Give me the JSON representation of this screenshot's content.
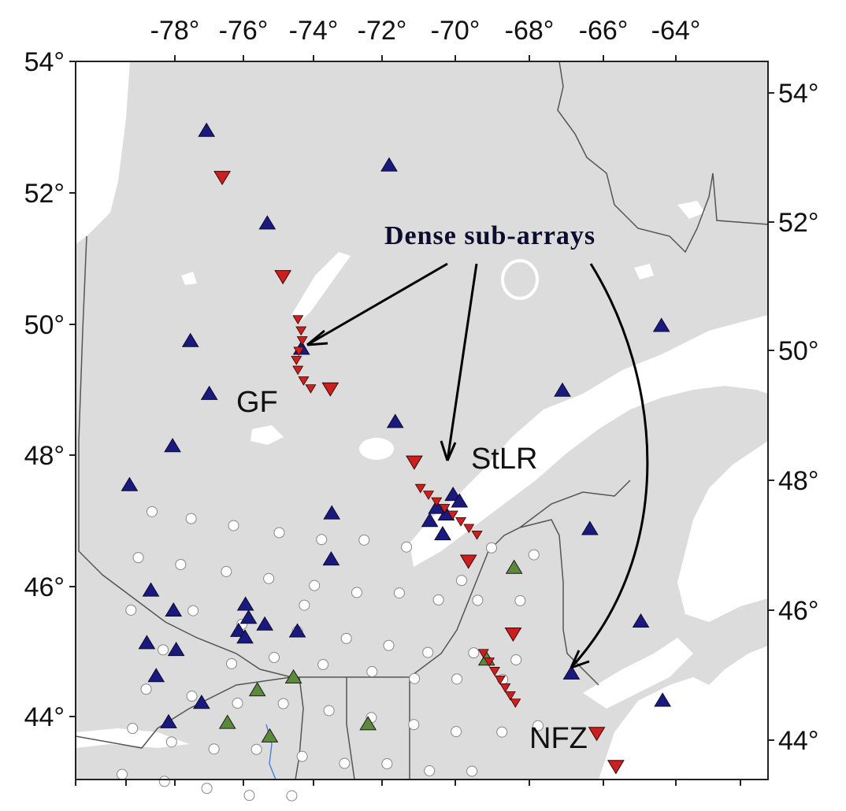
{
  "figure": {
    "callout_title": "Dense sub-arrays",
    "regions": [
      {
        "id": "gf",
        "label": "GF"
      },
      {
        "id": "stlr",
        "label": "StLR"
      },
      {
        "id": "nfz",
        "label": "NFZ"
      }
    ]
  },
  "axes": {
    "top_ticks": [
      {
        "value": -78,
        "label": "-78°"
      },
      {
        "value": -76,
        "label": "-76°"
      },
      {
        "value": -74,
        "label": "-74°"
      },
      {
        "value": -72,
        "label": "-72°"
      },
      {
        "value": -70,
        "label": "-70°"
      },
      {
        "value": -68,
        "label": "-68°"
      },
      {
        "value": -66,
        "label": "-66°"
      },
      {
        "value": -64,
        "label": "-64°"
      }
    ],
    "left_ticks": [
      {
        "value": 54,
        "label": "54°"
      },
      {
        "value": 52,
        "label": "52°"
      },
      {
        "value": 50,
        "label": "50°"
      },
      {
        "value": 48,
        "label": "48°"
      },
      {
        "value": 46,
        "label": "46°"
      },
      {
        "value": 44,
        "label": "44°"
      }
    ],
    "right_ticks": [
      {
        "value": 54,
        "label": "54°"
      },
      {
        "value": 52,
        "label": "52°"
      },
      {
        "value": 50,
        "label": "50°"
      },
      {
        "value": 48,
        "label": "48°"
      },
      {
        "value": 46,
        "label": "46°"
      },
      {
        "value": 44,
        "label": "44°"
      }
    ]
  },
  "colors": {
    "land": "#dcdcdc",
    "water": "#ffffff",
    "border_line": "#555555",
    "permanent_station": "#1a1a7e",
    "temporary_station": "#5d8a3a",
    "dense_array_station": "#cc1f1f",
    "grid_station": "#ffffff",
    "arrow": "#000000"
  },
  "stations": {
    "blue": [
      [
        -77.8,
        52.9
      ],
      [
        -75.9,
        51.5
      ],
      [
        -72.2,
        52.4
      ],
      [
        -78.2,
        49.7
      ],
      [
        -77.6,
        48.9
      ],
      [
        -74.8,
        49.6
      ],
      [
        -78.7,
        48.1
      ],
      [
        -80.0,
        47.5
      ],
      [
        -73.8,
        47.1
      ],
      [
        -73.8,
        46.4
      ],
      [
        -71.9,
        48.5
      ],
      [
        -66.8,
        49.0
      ],
      [
        -63.8,
        50.0
      ],
      [
        -70.3,
        47.1
      ],
      [
        -70.6,
        47.2
      ],
      [
        -70.1,
        47.4
      ],
      [
        -69.9,
        47.3
      ],
      [
        -70.4,
        46.8
      ],
      [
        -70.8,
        47.0
      ],
      [
        -65.9,
        46.9
      ],
      [
        -64.3,
        45.5
      ],
      [
        -66.4,
        44.7
      ],
      [
        -63.6,
        44.3
      ],
      [
        -79.3,
        45.9
      ],
      [
        -78.6,
        45.6
      ],
      [
        -79.4,
        45.1
      ],
      [
        -78.5,
        45.0
      ],
      [
        -79.1,
        44.6
      ],
      [
        -78.7,
        43.9
      ],
      [
        -77.7,
        44.2
      ],
      [
        -76.4,
        45.7
      ],
      [
        -76.3,
        45.5
      ],
      [
        -76.6,
        45.3
      ],
      [
        -76.4,
        45.2
      ],
      [
        -75.8,
        45.4
      ],
      [
        -74.8,
        45.3
      ]
    ],
    "green": [
      [
        -68.2,
        46.3
      ],
      [
        -69.0,
        44.9
      ],
      [
        -74.9,
        44.6
      ],
      [
        -76.0,
        44.4
      ],
      [
        -76.9,
        43.9
      ],
      [
        -75.6,
        43.7
      ],
      [
        -72.6,
        43.9
      ]
    ],
    "red_large": [
      [
        -77.3,
        52.2
      ],
      [
        -75.4,
        50.7
      ],
      [
        -73.9,
        49.0
      ],
      [
        -71.3,
        47.9
      ],
      [
        -69.6,
        46.4
      ],
      [
        -68.2,
        45.3
      ],
      [
        -65.6,
        43.8
      ],
      [
        -65.0,
        43.3
      ]
    ],
    "red_small": [
      [
        -74.92,
        50.05
      ],
      [
        -74.82,
        49.88
      ],
      [
        -74.78,
        49.73
      ],
      [
        -74.88,
        49.57
      ],
      [
        -74.95,
        49.43
      ],
      [
        -74.9,
        49.28
      ],
      [
        -74.72,
        49.12
      ],
      [
        -74.5,
        49.0
      ],
      [
        -71.1,
        47.5
      ],
      [
        -70.85,
        47.4
      ],
      [
        -70.6,
        47.3
      ],
      [
        -70.35,
        47.2
      ],
      [
        -70.1,
        47.1
      ],
      [
        -69.85,
        47.0
      ],
      [
        -69.6,
        46.9
      ],
      [
        -69.35,
        46.8
      ],
      [
        -69.1,
        45.0
      ],
      [
        -68.92,
        44.87
      ],
      [
        -68.75,
        44.73
      ],
      [
        -68.58,
        44.6
      ],
      [
        -68.42,
        44.48
      ],
      [
        -68.26,
        44.36
      ],
      [
        -68.1,
        44.25
      ]
    ],
    "white": [
      [
        -79.3,
        47.1
      ],
      [
        -78.1,
        47.0
      ],
      [
        -76.8,
        46.9
      ],
      [
        -75.4,
        46.8
      ],
      [
        -74.1,
        46.7
      ],
      [
        -72.8,
        46.7
      ],
      [
        -71.5,
        46.6
      ],
      [
        -68.9,
        46.6
      ],
      [
        -67.6,
        46.5
      ],
      [
        -79.7,
        46.4
      ],
      [
        -78.4,
        46.3
      ],
      [
        -77.0,
        46.2
      ],
      [
        -75.7,
        46.1
      ],
      [
        -74.3,
        46.0
      ],
      [
        -73.0,
        45.9
      ],
      [
        -71.7,
        45.9
      ],
      [
        -70.5,
        45.8
      ],
      [
        -69.3,
        45.8
      ],
      [
        -68.0,
        45.8
      ],
      [
        -79.9,
        45.6
      ],
      [
        -78.0,
        45.6
      ],
      [
        -76.5,
        45.4
      ],
      [
        -74.8,
        45.3
      ],
      [
        -73.3,
        45.2
      ],
      [
        -72.0,
        45.1
      ],
      [
        -70.8,
        45.0
      ],
      [
        -69.4,
        45.0
      ],
      [
        -68.1,
        44.9
      ],
      [
        -75.5,
        44.9
      ],
      [
        -74.0,
        44.8
      ],
      [
        -72.5,
        44.7
      ],
      [
        -71.2,
        44.6
      ],
      [
        -69.9,
        44.6
      ],
      [
        -68.5,
        44.6
      ],
      [
        -79.4,
        44.4
      ],
      [
        -78.0,
        44.3
      ],
      [
        -76.6,
        44.2
      ],
      [
        -75.2,
        44.2
      ],
      [
        -73.8,
        44.1
      ],
      [
        -72.5,
        44.0
      ],
      [
        -71.2,
        43.9
      ],
      [
        -69.9,
        43.8
      ],
      [
        -68.5,
        43.8
      ],
      [
        -67.4,
        43.9
      ],
      [
        -79.8,
        43.8
      ],
      [
        -78.6,
        43.6
      ],
      [
        -77.3,
        43.5
      ],
      [
        -76.0,
        43.5
      ],
      [
        -74.6,
        43.4
      ],
      [
        -73.3,
        43.3
      ],
      [
        -72.0,
        43.3
      ],
      [
        -70.7,
        43.2
      ],
      [
        -69.4,
        43.2
      ],
      [
        -80.1,
        43.1
      ],
      [
        -78.8,
        43.0
      ],
      [
        -77.5,
        42.9
      ],
      [
        -76.2,
        42.8
      ],
      [
        -74.9,
        42.8
      ],
      [
        -76.8,
        44.8
      ],
      [
        -78.9,
        45.0
      ],
      [
        -74.6,
        45.7
      ],
      [
        -69.8,
        46.1
      ]
    ]
  }
}
